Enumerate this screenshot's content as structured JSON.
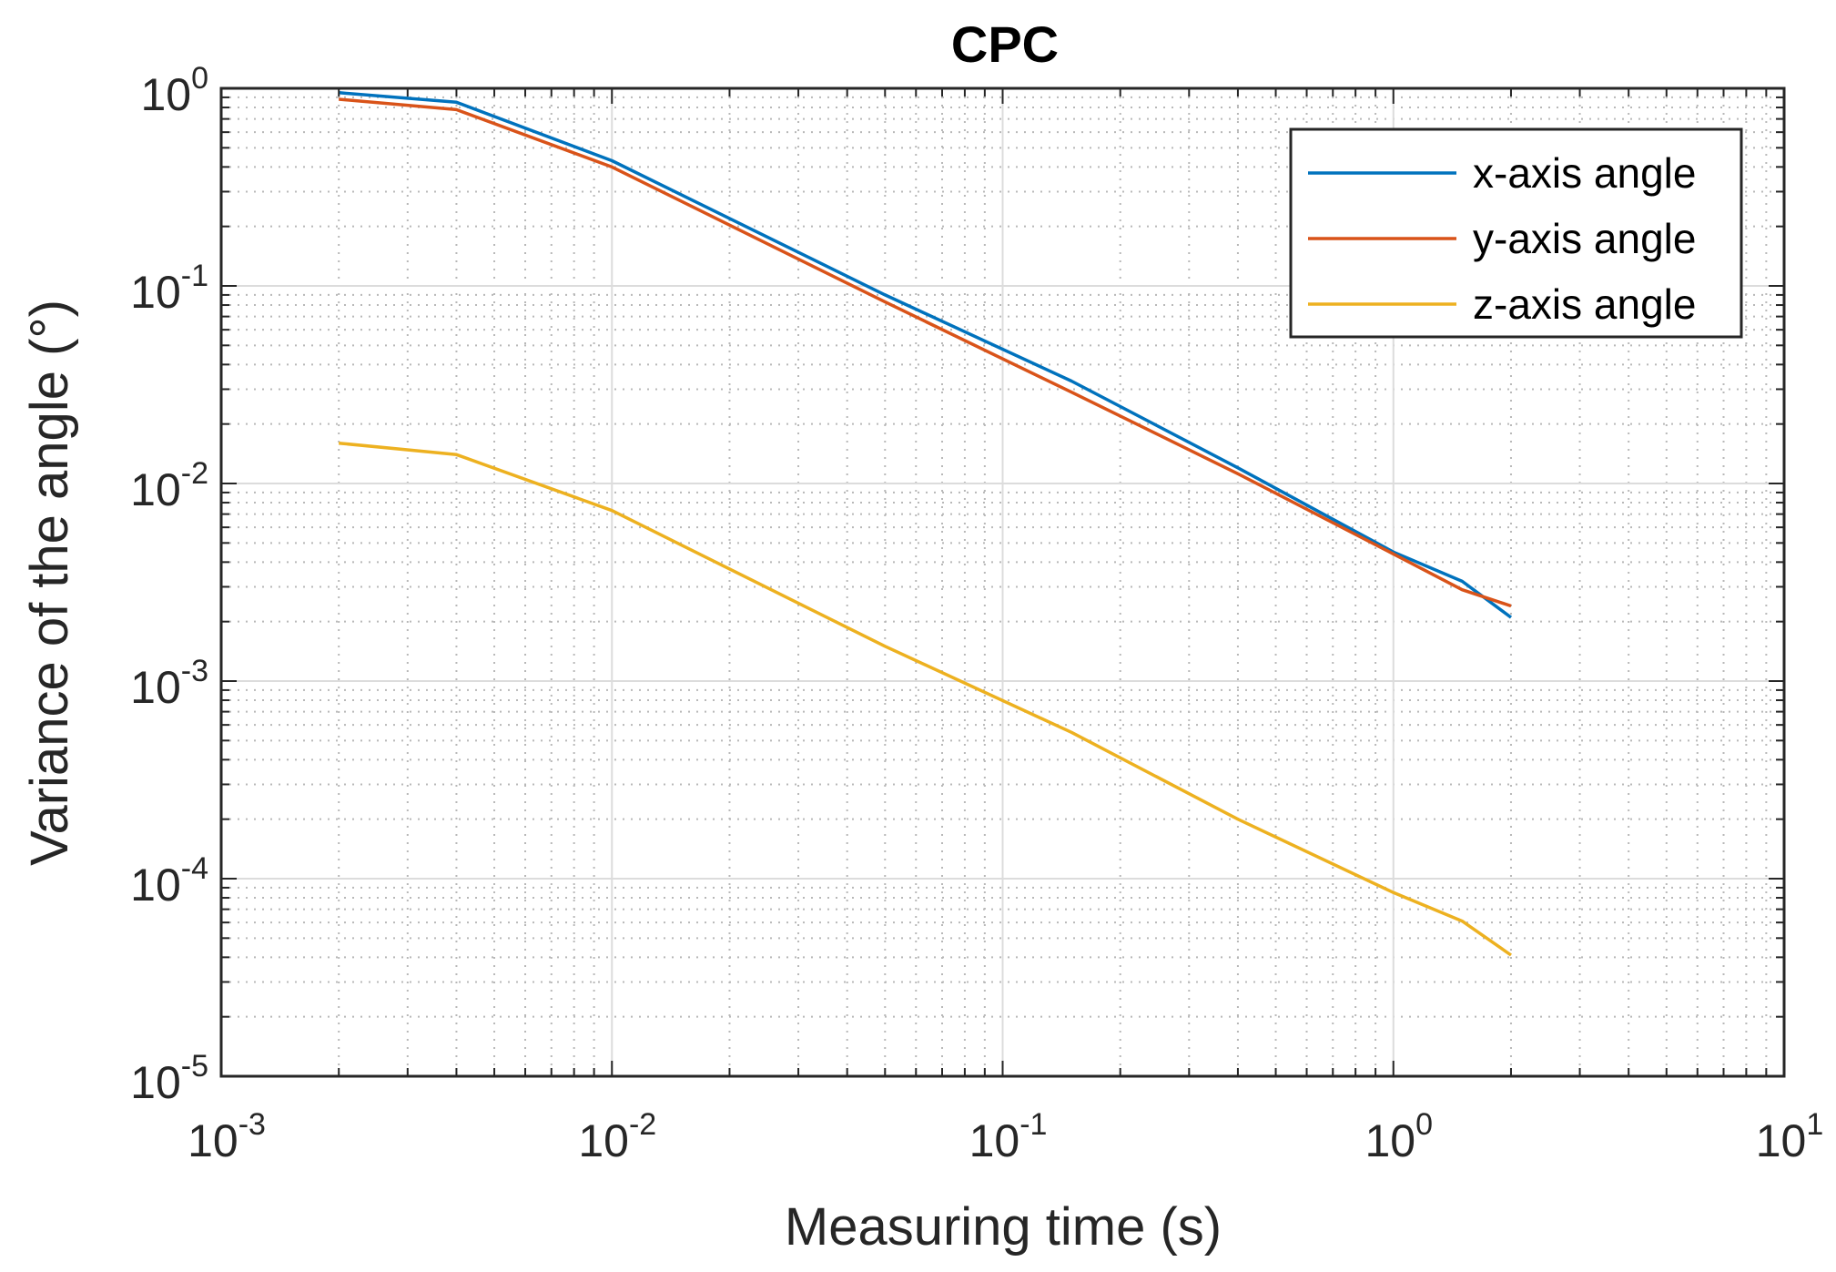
{
  "chart_data": {
    "type": "line",
    "title": "CPC",
    "xlabel": "Measuring time (s)",
    "ylabel": "Variance of the angle (°)",
    "xscale": "log",
    "yscale": "log",
    "xlim": [
      0.001,
      10
    ],
    "ylim": [
      1e-05,
      1
    ],
    "grid": true,
    "legend_position": "top-right",
    "x_ticks": [
      {
        "base": "10",
        "exp": "-3",
        "value": 0.001
      },
      {
        "base": "10",
        "exp": "-2",
        "value": 0.01
      },
      {
        "base": "10",
        "exp": "-1",
        "value": 0.1
      },
      {
        "base": "10",
        "exp": "0",
        "value": 1
      },
      {
        "base": "10",
        "exp": "1",
        "value": 10
      }
    ],
    "y_ticks": [
      {
        "base": "10",
        "exp": "0",
        "value": 1
      },
      {
        "base": "10",
        "exp": "-1",
        "value": 0.1
      },
      {
        "base": "10",
        "exp": "-2",
        "value": 0.01
      },
      {
        "base": "10",
        "exp": "-3",
        "value": 0.001
      },
      {
        "base": "10",
        "exp": "-4",
        "value": 0.0001
      },
      {
        "base": "10",
        "exp": "-5",
        "value": 1e-05
      }
    ],
    "series": [
      {
        "name": "x-axis angle",
        "color": "#0072BD",
        "x": [
          0.002,
          0.004,
          0.01,
          0.05,
          0.15,
          0.4,
          1.0,
          1.5,
          2.0
        ],
        "y": [
          0.95,
          0.85,
          0.43,
          0.09,
          0.033,
          0.012,
          0.0045,
          0.0032,
          0.0021
        ]
      },
      {
        "name": "y-axis angle",
        "color": "#D95319",
        "x": [
          0.002,
          0.004,
          0.01,
          0.05,
          0.15,
          0.4,
          1.0,
          1.5,
          2.0
        ],
        "y": [
          0.88,
          0.78,
          0.4,
          0.083,
          0.029,
          0.0112,
          0.0044,
          0.0029,
          0.0024
        ]
      },
      {
        "name": "z-axis angle",
        "color": "#EDB120",
        "x": [
          0.002,
          0.004,
          0.01,
          0.05,
          0.15,
          0.4,
          1.0,
          1.5,
          2.0
        ],
        "y": [
          0.016,
          0.014,
          0.0073,
          0.0015,
          0.00055,
          0.0002,
          8.5e-05,
          6.1e-05,
          4.1e-05
        ]
      }
    ]
  }
}
